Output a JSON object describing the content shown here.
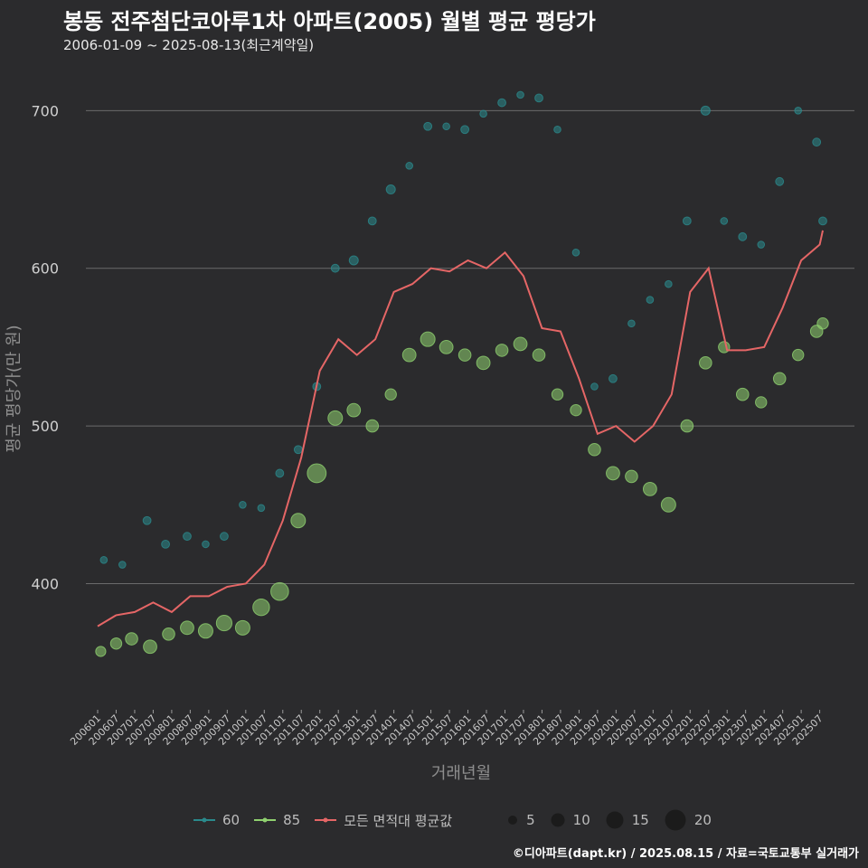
{
  "header": {
    "title": "봉동 전주첨단코아루1차 아파트(2005) 월별 평균 평당가",
    "subtitle": "2006-01-09 ~ 2025-08-13(최근계약일)"
  },
  "footer": {
    "credit": "©디아파트(dapt.kr) / 2025.08.15 / 자료=국토교통부 실거래가"
  },
  "legend": {
    "series": [
      {
        "label": "60",
        "color": "#2a8a8c"
      },
      {
        "label": "85",
        "color": "#8fd16f"
      },
      {
        "label": "모든 면적대 평균값",
        "color": "#e56666"
      }
    ],
    "sizes": [
      {
        "label": "5",
        "value": 5
      },
      {
        "label": "10",
        "value": 10
      },
      {
        "label": "15",
        "value": 15
      },
      {
        "label": "20",
        "value": 20
      }
    ]
  },
  "chart_data": {
    "type": "scatter",
    "xlabel": "거래년월",
    "ylabel": "평균 평당가(만 원)",
    "ylim": [
      320,
      730
    ],
    "yticks": [
      400,
      500,
      600,
      700
    ],
    "grid": "horizontal",
    "legend_position": "bottom",
    "x_start": "2006-01",
    "x_end": "2025-08",
    "x_tick_labels": [
      "200601",
      "200607",
      "200701",
      "200707",
      "200801",
      "200807",
      "200901",
      "200907",
      "201001",
      "201007",
      "201101",
      "201107",
      "201201",
      "201207",
      "201301",
      "201307",
      "201401",
      "201407",
      "201501",
      "201507",
      "201601",
      "201607",
      "201701",
      "201707",
      "201801",
      "201807",
      "201901",
      "201907",
      "202001",
      "202007",
      "202101",
      "202107",
      "202201",
      "202207",
      "202301",
      "202307",
      "202401",
      "202407",
      "202501",
      "202507"
    ],
    "colors": {
      "60": "#2a8a8c",
      "85": "#8fd16f",
      "avg": "#e56666"
    },
    "series": [
      {
        "name": "모든 면적대 평균값",
        "type": "line",
        "points": [
          [
            "2006-01",
            373
          ],
          [
            "2006-07",
            380
          ],
          [
            "2007-01",
            382
          ],
          [
            "2007-07",
            388
          ],
          [
            "2008-01",
            382
          ],
          [
            "2008-07",
            392
          ],
          [
            "2009-01",
            392
          ],
          [
            "2009-07",
            398
          ],
          [
            "2010-01",
            400
          ],
          [
            "2010-07",
            412
          ],
          [
            "2011-01",
            440
          ],
          [
            "2011-07",
            480
          ],
          [
            "2012-01",
            535
          ],
          [
            "2012-07",
            555
          ],
          [
            "2013-01",
            545
          ],
          [
            "2013-07",
            555
          ],
          [
            "2014-01",
            585
          ],
          [
            "2014-07",
            590
          ],
          [
            "2015-01",
            600
          ],
          [
            "2015-07",
            598
          ],
          [
            "2016-01",
            605
          ],
          [
            "2016-07",
            600
          ],
          [
            "2017-01",
            610
          ],
          [
            "2017-07",
            595
          ],
          [
            "2018-01",
            562
          ],
          [
            "2018-07",
            560
          ],
          [
            "2019-01",
            530
          ],
          [
            "2019-07",
            495
          ],
          [
            "2020-01",
            500
          ],
          [
            "2020-07",
            490
          ],
          [
            "2021-01",
            500
          ],
          [
            "2021-07",
            520
          ],
          [
            "2022-01",
            585
          ],
          [
            "2022-07",
            600
          ],
          [
            "2023-01",
            548
          ],
          [
            "2023-07",
            548
          ],
          [
            "2024-01",
            550
          ],
          [
            "2024-07",
            575
          ],
          [
            "2025-01",
            605
          ],
          [
            "2025-07",
            615
          ],
          [
            "2025-08",
            624
          ]
        ]
      },
      {
        "name": "60",
        "type": "scatter",
        "points": [
          [
            "2006-03",
            415,
            3
          ],
          [
            "2006-09",
            412,
            3
          ],
          [
            "2007-05",
            440,
            4
          ],
          [
            "2007-11",
            425,
            4
          ],
          [
            "2008-06",
            430,
            4
          ],
          [
            "2008-12",
            425,
            3
          ],
          [
            "2009-06",
            430,
            4
          ],
          [
            "2009-12",
            450,
            3
          ],
          [
            "2010-06",
            448,
            3
          ],
          [
            "2010-12",
            470,
            4
          ],
          [
            "2011-06",
            485,
            4
          ],
          [
            "2011-12",
            525,
            4
          ],
          [
            "2012-06",
            600,
            4
          ],
          [
            "2012-12",
            605,
            5
          ],
          [
            "2013-06",
            630,
            4
          ],
          [
            "2013-12",
            650,
            5
          ],
          [
            "2014-06",
            665,
            3
          ],
          [
            "2014-12",
            690,
            4
          ],
          [
            "2015-06",
            690,
            3
          ],
          [
            "2015-12",
            688,
            4
          ],
          [
            "2016-06",
            698,
            3
          ],
          [
            "2016-12",
            705,
            4
          ],
          [
            "2017-06",
            710,
            3
          ],
          [
            "2017-12",
            708,
            4
          ],
          [
            "2018-06",
            688,
            3
          ],
          [
            "2018-12",
            610,
            3
          ],
          [
            "2019-06",
            525,
            3
          ],
          [
            "2019-12",
            530,
            4
          ],
          [
            "2020-06",
            565,
            3
          ],
          [
            "2020-12",
            580,
            3
          ],
          [
            "2021-06",
            590,
            3
          ],
          [
            "2021-12",
            630,
            4
          ],
          [
            "2022-06",
            700,
            5
          ],
          [
            "2022-12",
            630,
            3
          ],
          [
            "2023-06",
            620,
            4
          ],
          [
            "2023-12",
            615,
            3
          ],
          [
            "2024-06",
            655,
            4
          ],
          [
            "2024-12",
            700,
            3
          ],
          [
            "2025-06",
            680,
            4
          ],
          [
            "2025-08",
            630,
            4
          ]
        ]
      },
      {
        "name": "85",
        "type": "scatter",
        "points": [
          [
            "2006-02",
            357,
            6
          ],
          [
            "2006-07",
            362,
            7
          ],
          [
            "2006-12",
            365,
            8
          ],
          [
            "2007-06",
            360,
            9
          ],
          [
            "2007-12",
            368,
            8
          ],
          [
            "2008-06",
            372,
            9
          ],
          [
            "2008-12",
            370,
            10
          ],
          [
            "2009-06",
            375,
            11
          ],
          [
            "2009-12",
            372,
            10
          ],
          [
            "2010-06",
            385,
            12
          ],
          [
            "2010-12",
            395,
            13
          ],
          [
            "2011-06",
            440,
            10
          ],
          [
            "2011-12",
            470,
            14
          ],
          [
            "2012-06",
            505,
            10
          ],
          [
            "2012-12",
            510,
            9
          ],
          [
            "2013-06",
            500,
            8
          ],
          [
            "2013-12",
            520,
            7
          ],
          [
            "2014-06",
            545,
            9
          ],
          [
            "2014-12",
            555,
            10
          ],
          [
            "2015-06",
            550,
            9
          ],
          [
            "2015-12",
            545,
            8
          ],
          [
            "2016-06",
            540,
            9
          ],
          [
            "2016-12",
            548,
            8
          ],
          [
            "2017-06",
            552,
            9
          ],
          [
            "2017-12",
            545,
            8
          ],
          [
            "2018-06",
            520,
            7
          ],
          [
            "2018-12",
            510,
            7
          ],
          [
            "2019-06",
            485,
            8
          ],
          [
            "2019-12",
            470,
            9
          ],
          [
            "2020-06",
            468,
            8
          ],
          [
            "2020-12",
            460,
            9
          ],
          [
            "2021-06",
            450,
            10
          ],
          [
            "2021-12",
            500,
            8
          ],
          [
            "2022-06",
            540,
            8
          ],
          [
            "2022-12",
            550,
            7
          ],
          [
            "2023-06",
            520,
            8
          ],
          [
            "2023-12",
            515,
            7
          ],
          [
            "2024-06",
            530,
            8
          ],
          [
            "2024-12",
            545,
            7
          ],
          [
            "2025-06",
            560,
            8
          ],
          [
            "2025-08",
            565,
            7
          ]
        ]
      }
    ]
  }
}
